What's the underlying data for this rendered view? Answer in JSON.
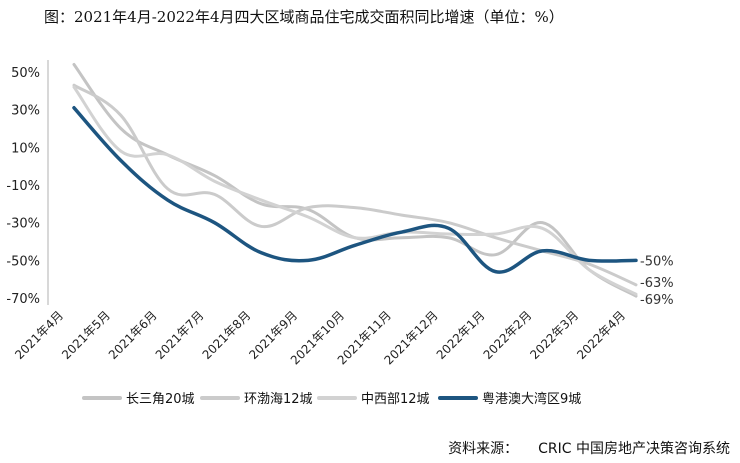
{
  "chart_data": {
    "type": "line",
    "title": "图：2021年4月-2022年4月四大区域商品住宅成交面积同比增速（单位：%）",
    "categories": [
      "2021年4月",
      "2021年5月",
      "2021年6月",
      "2021年7月",
      "2021年8月",
      "2021年9月",
      "2021年10月",
      "2021年11月",
      "2021年12月",
      "2022年1月",
      "2022年2月",
      "2022年3月",
      "2022年4月"
    ],
    "ylim": [
      -70,
      50
    ],
    "yticks": [
      "50%",
      "30%",
      "10%",
      "-10%",
      "-30%",
      "-50%",
      "-70%"
    ],
    "ytick_values": [
      50,
      30,
      10,
      -10,
      -30,
      -50,
      -70
    ],
    "series": [
      {
        "name": "长三角20城",
        "color": "#c4c4c4",
        "width": 3,
        "values": [
          54,
          20,
          6,
          -5,
          -20,
          -23,
          -38,
          -38,
          -38,
          -47,
          -30,
          -55,
          -69
        ]
      },
      {
        "name": "环渤海12城",
        "color": "#cbcbcb",
        "width": 3,
        "values": [
          43,
          27,
          -12,
          -15,
          -32,
          -22,
          -22,
          -26,
          -30,
          -38,
          -45,
          -52,
          -63
        ]
      },
      {
        "name": "中西部12城",
        "color": "#d2d2d2",
        "width": 3,
        "values": [
          42,
          8,
          6,
          -8,
          -18,
          -27,
          -38,
          -35,
          -36,
          -36,
          -33,
          -55,
          -68
        ]
      },
      {
        "name": "粤港澳大湾区9城",
        "color": "#1d5580",
        "width": 3.5,
        "values": [
          31,
          3,
          -18,
          -30,
          -46,
          -50,
          -42,
          -35,
          -33,
          -56,
          -45,
          -50,
          -50
        ]
      }
    ],
    "end_labels": [
      "-50%",
      "-63%",
      "-69%"
    ]
  },
  "source": {
    "label": "资料来源：",
    "text": "CRIC 中国房地产决策咨询系统"
  }
}
